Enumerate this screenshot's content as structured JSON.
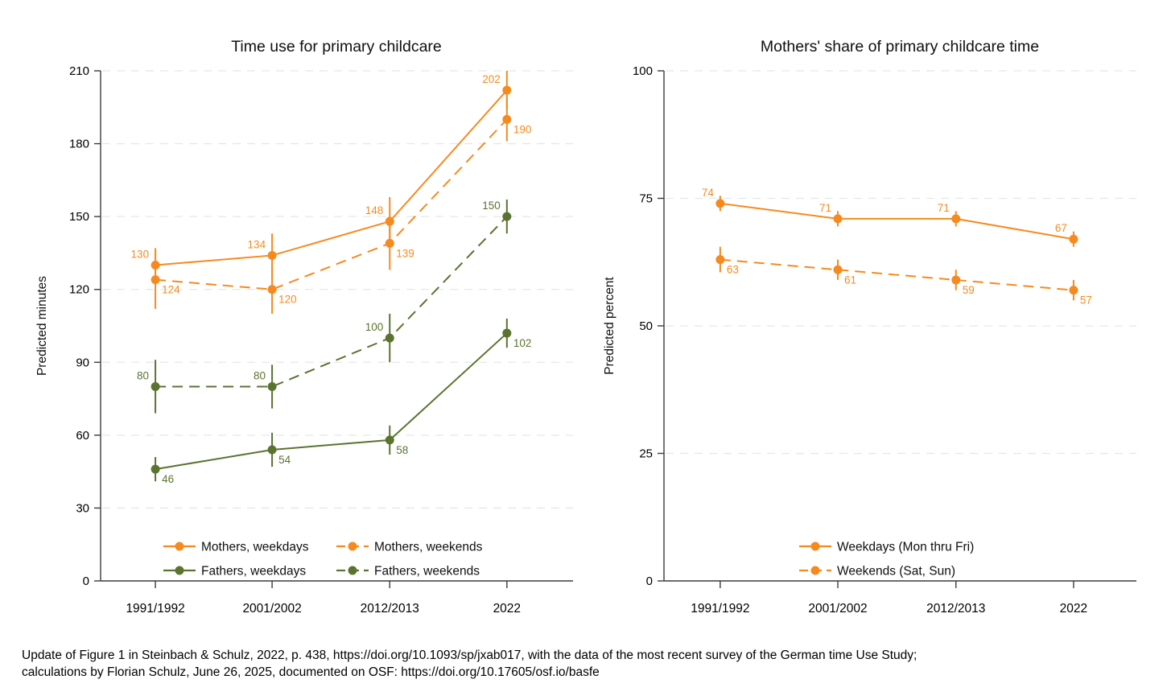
{
  "page": {
    "footer_line1": "Update of Figure 1 in Steinbach & Schulz, 2022, p. 438, https://doi.org/10.1093/sp/jxab017, with the data of the most recent survey of the German time Use Study;",
    "footer_line2": "calculations by Florian Schulz, June 26, 2025, documented on OSF: https://doi.org/10.17605/osf.io/basfe"
  },
  "colors": {
    "orange": "#F68A1E",
    "green": "#5A7430",
    "grid": "#E7E7E7",
    "axis": "#3B3B3B",
    "text": "#0F0F0F"
  },
  "chart_data": [
    {
      "type": "line",
      "title": "Time use for primary childcare",
      "xlabel": "",
      "ylabel": "Predicted minutes",
      "categories": [
        "1991/1992",
        "2001/2002",
        "2012/2013",
        "2022"
      ],
      "ylim": [
        0,
        210
      ],
      "yticks": [
        0,
        30,
        60,
        90,
        120,
        150,
        180,
        210
      ],
      "grid": true,
      "legend_position": "bottom-inside",
      "legend_columns": 2,
      "series": [
        {
          "name": "Mothers, weekdays",
          "color": "orange",
          "dash": false,
          "values": [
            130,
            134,
            148,
            202
          ],
          "ci": [
            7,
            9,
            10,
            8
          ],
          "label_side": "above-left"
        },
        {
          "name": "Mothers, weekends",
          "color": "orange",
          "dash": true,
          "values": [
            124,
            120,
            139,
            190
          ],
          "ci": [
            12,
            10,
            11,
            9
          ],
          "label_side": "below-right"
        },
        {
          "name": "Fathers, weekdays",
          "color": "green",
          "dash": false,
          "values": [
            46,
            54,
            58,
            102
          ],
          "ci": [
            5,
            7,
            6,
            6
          ],
          "label_side": "below-right"
        },
        {
          "name": "Fathers, weekends",
          "color": "green",
          "dash": true,
          "values": [
            80,
            80,
            100,
            150
          ],
          "ci": [
            11,
            9,
            10,
            7
          ],
          "label_side": "above-left"
        }
      ]
    },
    {
      "type": "line",
      "title": "Mothers' share of primary childcare time",
      "xlabel": "",
      "ylabel": "Predicted percent",
      "categories": [
        "1991/1992",
        "2001/2002",
        "2012/2013",
        "2022"
      ],
      "ylim": [
        0,
        100
      ],
      "yticks": [
        0,
        25,
        50,
        75,
        100
      ],
      "grid": true,
      "legend_position": "bottom-inside",
      "legend_columns": 1,
      "series": [
        {
          "name": "Weekdays (Mon thru Fri)",
          "color": "orange",
          "dash": false,
          "values": [
            74,
            71,
            71,
            67
          ],
          "ci": [
            1.5,
            1.5,
            1.5,
            1.5
          ],
          "label_side": "above-left"
        },
        {
          "name": "Weekends (Sat, Sun)",
          "color": "orange",
          "dash": true,
          "values": [
            63,
            61,
            59,
            57
          ],
          "ci": [
            2.5,
            2,
            2,
            2
          ],
          "label_side": "below-right"
        }
      ]
    }
  ]
}
